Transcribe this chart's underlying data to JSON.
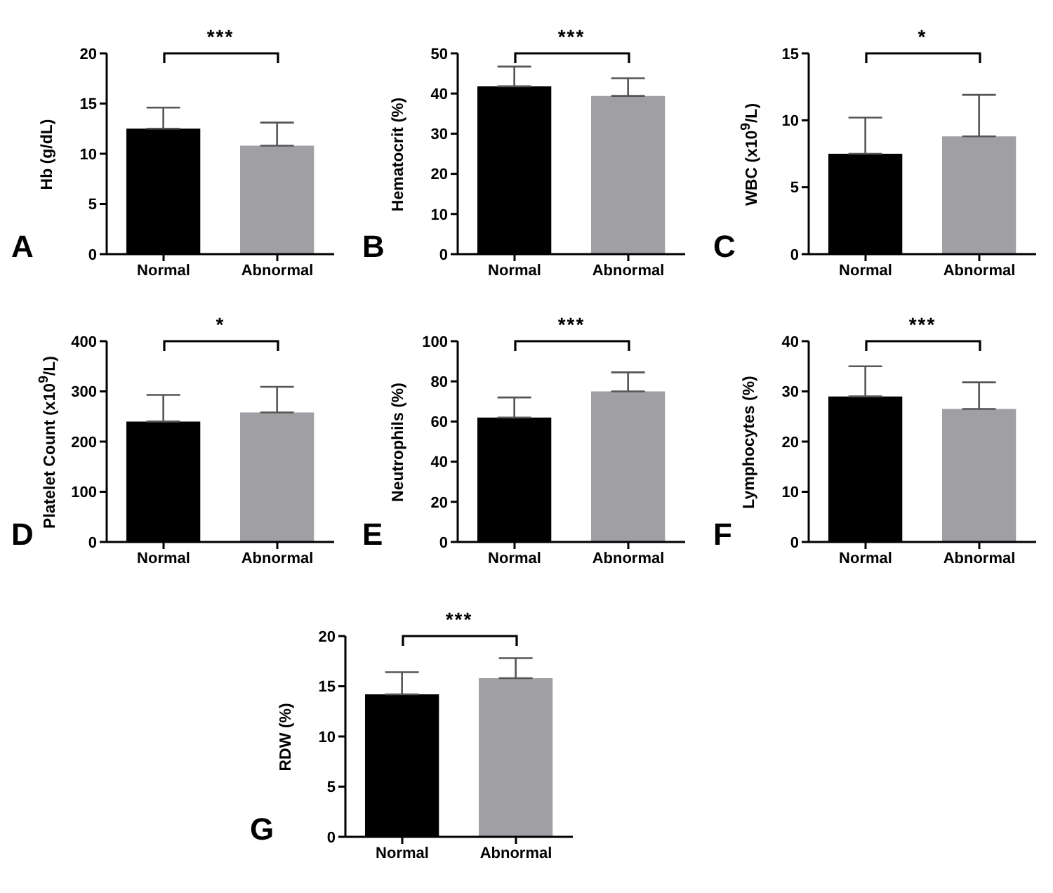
{
  "chart_data": [
    {
      "type": "bar",
      "ylabel": "Hb (g/dL)",
      "categories": [
        "Normal",
        "Abnormal"
      ],
      "values": [
        12.5,
        10.8
      ],
      "colors": [
        "#000000",
        "#a0a0a4"
      ],
      "errors": [
        [
          12.5,
          14.6
        ],
        [
          10.8,
          13.1
        ]
      ],
      "ylim": [
        0,
        20
      ],
      "yticks": [
        0,
        5,
        10,
        15,
        20
      ],
      "grid": false,
      "annotations": [
        "***",
        "A"
      ]
    },
    {
      "type": "bar",
      "ylabel": "Hematocrit (%)",
      "categories": [
        "Normal",
        "Abnormal"
      ],
      "values": [
        41.8,
        39.4
      ],
      "colors": [
        "#000000",
        "#a0a0a4"
      ],
      "errors": [
        [
          41.8,
          46.7
        ],
        [
          39.4,
          43.8
        ]
      ],
      "ylim": [
        0,
        50
      ],
      "yticks": [
        0,
        10,
        20,
        30,
        40,
        50
      ],
      "grid": false,
      "annotations": [
        "***",
        "B"
      ]
    },
    {
      "type": "bar",
      "ylabel": "WBC (x10$^{9}$/L)",
      "categories": [
        "Normal",
        "Abnormal"
      ],
      "values": [
        7.5,
        8.8
      ],
      "colors": [
        "#000000",
        "#a0a0a4"
      ],
      "errors": [
        [
          7.5,
          10.2
        ],
        [
          8.8,
          11.9
        ]
      ],
      "ylim": [
        0,
        15
      ],
      "yticks": [
        0,
        5,
        10,
        15
      ],
      "grid": false,
      "annotations": [
        "*",
        "C"
      ]
    },
    {
      "type": "bar",
      "ylabel": "Platelet Count (x10$^{9}$/L)",
      "categories": [
        "Normal",
        "Abnormal"
      ],
      "values": [
        240,
        258
      ],
      "colors": [
        "#000000",
        "#a0a0a4"
      ],
      "errors": [
        [
          240,
          293
        ],
        [
          258,
          309
        ]
      ],
      "ylim": [
        0,
        400
      ],
      "yticks": [
        0,
        100,
        200,
        300,
        400
      ],
      "grid": false,
      "annotations": [
        "*",
        "D"
      ]
    },
    {
      "type": "bar",
      "ylabel": "Neutrophils (%)",
      "categories": [
        "Normal",
        "Abnormal"
      ],
      "values": [
        62,
        75
      ],
      "colors": [
        "#000000",
        "#a0a0a4"
      ],
      "errors": [
        [
          62,
          72
        ],
        [
          75,
          84.5
        ]
      ],
      "ylim": [
        0,
        100
      ],
      "yticks": [
        0,
        20,
        40,
        60,
        80,
        100
      ],
      "grid": false,
      "annotations": [
        "***",
        "E"
      ]
    },
    {
      "type": "bar",
      "ylabel": "Lymphocytes (%)",
      "categories": [
        "Normal",
        "Abnormal"
      ],
      "values": [
        29,
        26.5
      ],
      "colors": [
        "#000000",
        "#a0a0a4"
      ],
      "errors": [
        [
          29,
          35
        ],
        [
          26.5,
          31.8
        ]
      ],
      "ylim": [
        0,
        40
      ],
      "yticks": [
        0,
        10,
        20,
        30,
        40
      ],
      "grid": false,
      "annotations": [
        "***",
        "F"
      ]
    },
    {
      "type": "bar",
      "ylabel": "RDW (%)",
      "categories": [
        "Normal",
        "Abnormal"
      ],
      "values": [
        14.2,
        15.8
      ],
      "colors": [
        "#000000",
        "#a0a0a4"
      ],
      "errors": [
        [
          14.2,
          16.4
        ],
        [
          15.8,
          17.8
        ]
      ],
      "ylim": [
        0,
        20
      ],
      "yticks": [
        0,
        5,
        10,
        15,
        20
      ],
      "grid": false,
      "annotations": [
        "***",
        "G"
      ]
    }
  ]
}
